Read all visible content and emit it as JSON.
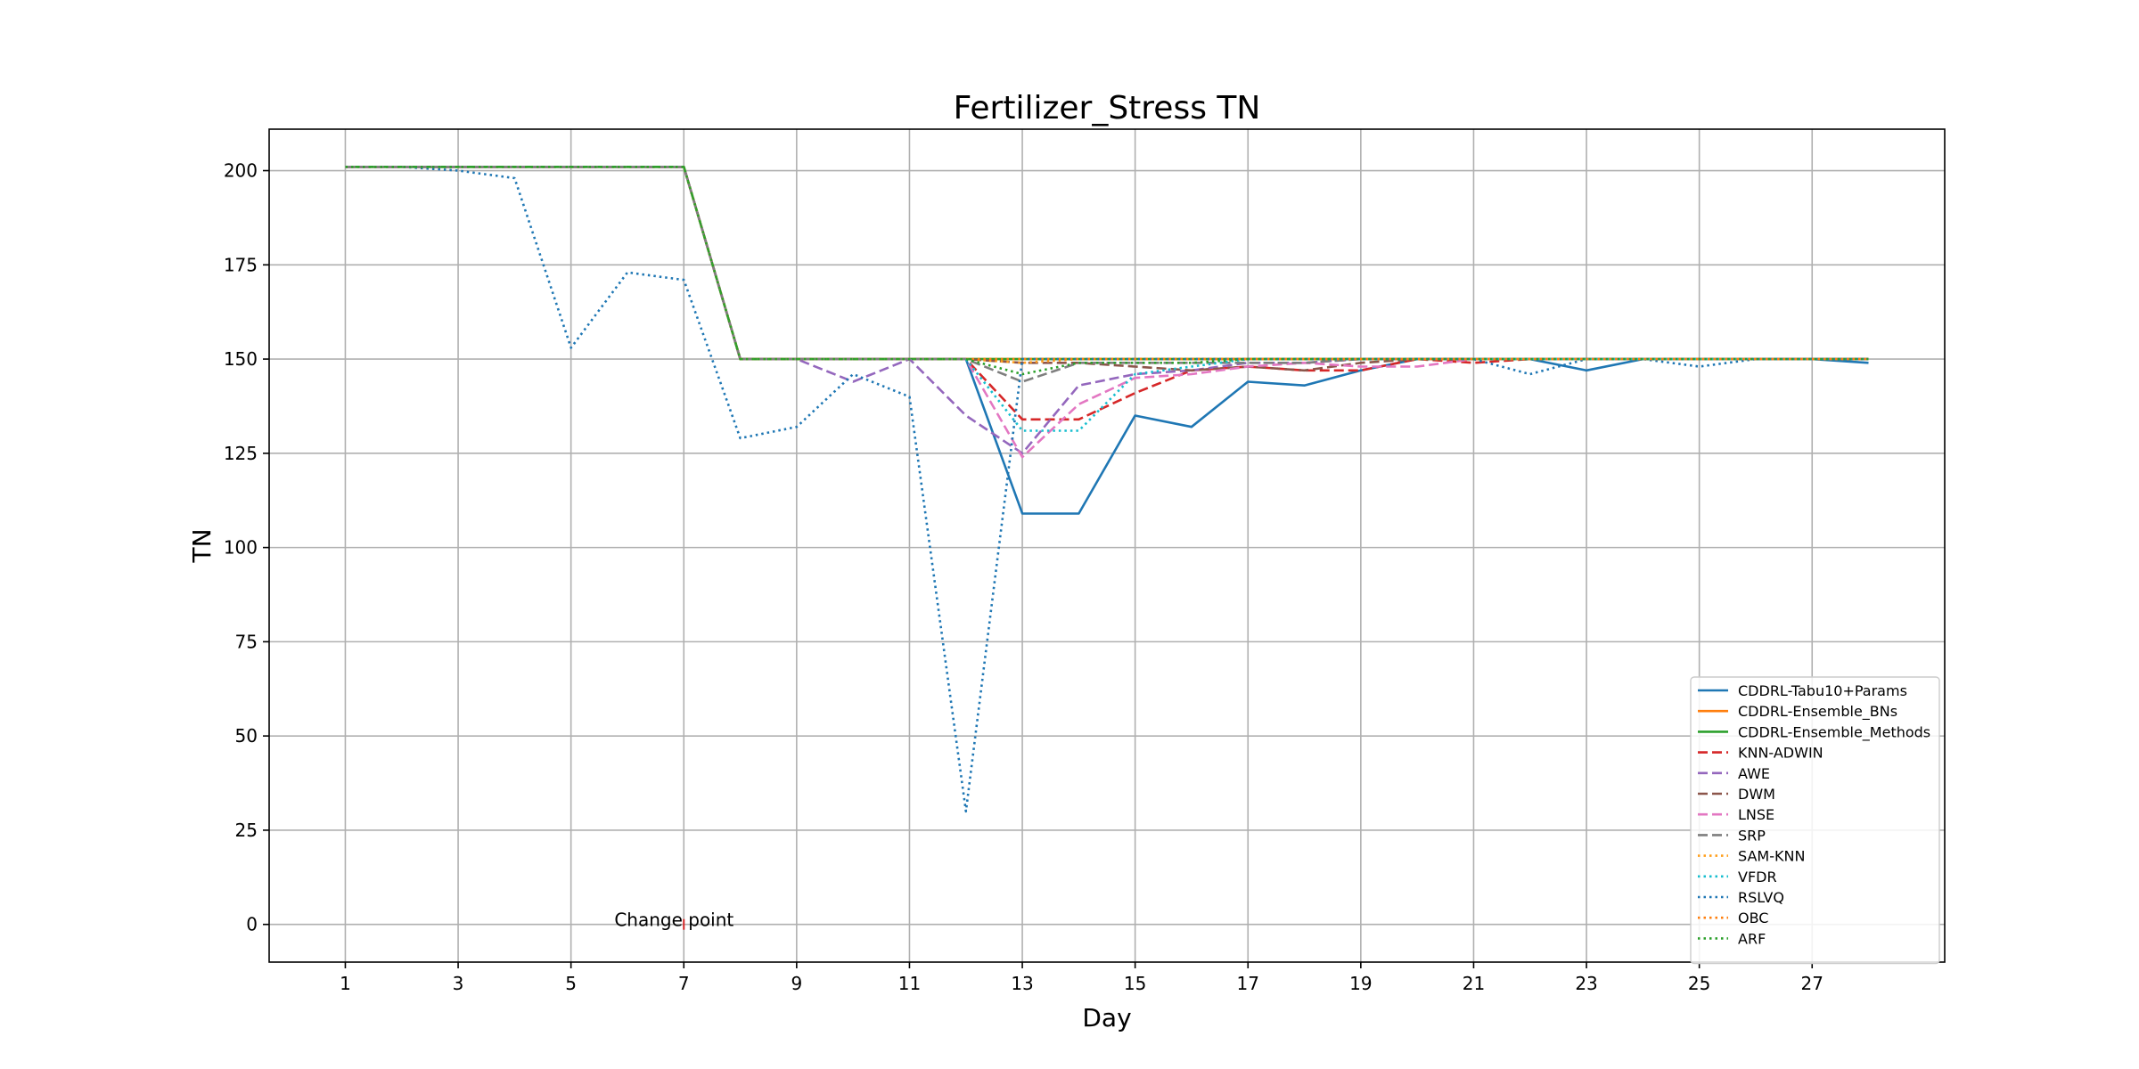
{
  "chart_data": {
    "type": "line",
    "title": "Fertilizer_Stress TN",
    "xlabel": "Day",
    "ylabel": "TN",
    "xlim": [
      -0.35,
      29.35
    ],
    "ylim": [
      -10,
      211
    ],
    "xticks": [
      1,
      3,
      5,
      7,
      9,
      11,
      13,
      15,
      17,
      19,
      21,
      23,
      25,
      27
    ],
    "yticks": [
      0,
      25,
      50,
      75,
      100,
      125,
      150,
      175,
      200
    ],
    "grid": true,
    "legend_position": "lower-right",
    "x": [
      1,
      2,
      3,
      4,
      5,
      6,
      7,
      8,
      9,
      10,
      11,
      12,
      13,
      14,
      15,
      16,
      17,
      18,
      19,
      20,
      21,
      22,
      23,
      24,
      25,
      26,
      27,
      28
    ],
    "annotation": {
      "text": "Change point",
      "x": 7,
      "y": 0
    },
    "series": [
      {
        "name": "CDDRL-Tabu10+Params",
        "color": "#1f77b4",
        "style": "solid",
        "values": [
          201,
          201,
          201,
          201,
          201,
          201,
          201,
          150,
          150,
          150,
          150,
          150,
          109,
          109,
          135,
          132,
          144,
          143,
          147,
          150,
          150,
          150,
          147,
          150,
          150,
          150,
          150,
          149
        ]
      },
      {
        "name": "CDDRL-Ensemble_BNs",
        "color": "#ff7f0e",
        "style": "solid",
        "values": [
          201,
          201,
          201,
          201,
          201,
          201,
          201,
          150,
          150,
          150,
          150,
          150,
          150,
          150,
          150,
          150,
          150,
          150,
          150,
          150,
          150,
          150,
          150,
          150,
          150,
          150,
          150,
          150
        ]
      },
      {
        "name": "CDDRL-Ensemble_Methods",
        "color": "#2ca02c",
        "style": "solid",
        "values": [
          201,
          201,
          201,
          201,
          201,
          201,
          201,
          150,
          150,
          150,
          150,
          150,
          150,
          150,
          150,
          150,
          150,
          150,
          150,
          150,
          150,
          150,
          150,
          150,
          150,
          150,
          150,
          150
        ]
      },
      {
        "name": "KNN-ADWIN",
        "color": "#d62728",
        "style": "dashed",
        "values": [
          201,
          201,
          201,
          201,
          201,
          201,
          201,
          150,
          150,
          150,
          150,
          150,
          134,
          134,
          141,
          147,
          148,
          147,
          147,
          150,
          149,
          150,
          150,
          150,
          150,
          150,
          150,
          150
        ]
      },
      {
        "name": "AWE",
        "color": "#9467bd",
        "style": "dashed",
        "values": [
          201,
          201,
          201,
          201,
          201,
          201,
          201,
          150,
          150,
          144,
          150,
          135,
          125,
          143,
          146,
          147,
          149,
          149,
          150,
          150,
          150,
          150,
          150,
          150,
          150,
          150,
          150,
          150
        ]
      },
      {
        "name": "DWM",
        "color": "#8c564b",
        "style": "dashed",
        "values": [
          201,
          201,
          201,
          201,
          201,
          201,
          201,
          150,
          150,
          150,
          150,
          150,
          149,
          149,
          148,
          147,
          148,
          147,
          149,
          150,
          150,
          150,
          150,
          150,
          150,
          150,
          150,
          150
        ]
      },
      {
        "name": "LNSE",
        "color": "#e377c2",
        "style": "dashed",
        "values": [
          201,
          201,
          201,
          201,
          201,
          201,
          201,
          150,
          150,
          150,
          150,
          150,
          124,
          138,
          145,
          146,
          148,
          149,
          148,
          148,
          150,
          150,
          150,
          150,
          150,
          150,
          150,
          150
        ]
      },
      {
        "name": "SRP",
        "color": "#7f7f7f",
        "style": "dashed",
        "values": [
          201,
          201,
          201,
          201,
          201,
          201,
          201,
          150,
          150,
          150,
          150,
          150,
          144,
          149,
          149,
          149,
          149,
          149,
          150,
          150,
          150,
          150,
          150,
          150,
          150,
          150,
          150,
          150
        ]
      },
      {
        "name": "SAM-KNN",
        "color": "#ff9f1c",
        "style": "dotted",
        "values": [
          201,
          201,
          201,
          201,
          201,
          201,
          201,
          150,
          150,
          150,
          150,
          150,
          149,
          150,
          150,
          150,
          150,
          150,
          150,
          150,
          150,
          150,
          150,
          150,
          150,
          150,
          150,
          150
        ]
      },
      {
        "name": "VFDR",
        "color": "#17becf",
        "style": "dotted",
        "values": [
          201,
          201,
          201,
          201,
          201,
          201,
          201,
          150,
          150,
          150,
          150,
          150,
          131,
          131,
          146,
          148,
          150,
          150,
          150,
          150,
          150,
          150,
          150,
          150,
          150,
          150,
          150,
          150
        ]
      },
      {
        "name": "RSLVQ",
        "color": "#1f77b4",
        "style": "dotted",
        "values": [
          201,
          201,
          200,
          198,
          153,
          173,
          171,
          129,
          132,
          146,
          140,
          30,
          150,
          150,
          150,
          150,
          150,
          150,
          150,
          150,
          150,
          146,
          150,
          150,
          148,
          150,
          150,
          150
        ]
      },
      {
        "name": "OBC",
        "color": "#ff7f0e",
        "style": "dotted",
        "values": [
          201,
          201,
          201,
          201,
          201,
          201,
          201,
          150,
          150,
          150,
          150,
          150,
          150,
          150,
          150,
          150,
          150,
          150,
          150,
          150,
          150,
          150,
          150,
          150,
          150,
          150,
          150,
          150
        ]
      },
      {
        "name": "ARF",
        "color": "#2ca02c",
        "style": "dotted",
        "values": [
          201,
          201,
          201,
          201,
          201,
          201,
          201,
          150,
          150,
          150,
          150,
          150,
          146,
          149,
          149,
          149,
          150,
          150,
          150,
          150,
          150,
          150,
          150,
          150,
          150,
          150,
          150,
          150
        ]
      }
    ]
  }
}
